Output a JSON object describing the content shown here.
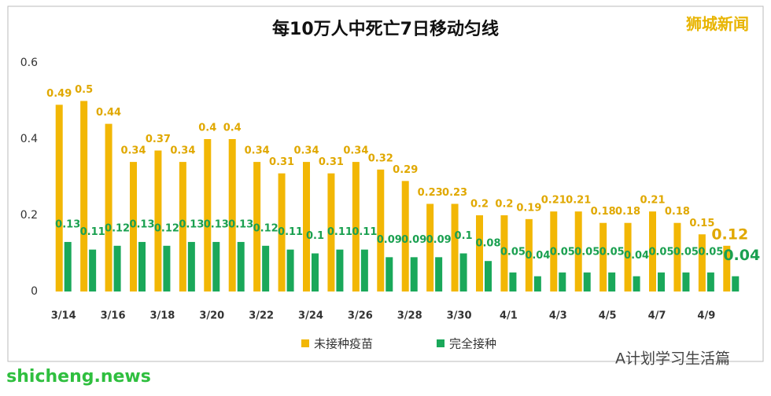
{
  "chart_data": {
    "type": "bar",
    "title": "每10万人中死亡7日移动匀线",
    "categories": [
      "3/14",
      null,
      "3/16",
      null,
      "3/18",
      null,
      "3/20",
      null,
      "3/22",
      null,
      "3/24",
      null,
      "3/26",
      null,
      "3/28",
      null,
      "3/30",
      null,
      "4/1",
      null,
      "4/3",
      null,
      "4/5",
      null,
      "4/7",
      null,
      "4/9",
      null
    ],
    "series": [
      {
        "name": "未接种疫苗",
        "color": "#f2b705",
        "values": [
          0.49,
          0.5,
          0.44,
          0.34,
          0.37,
          0.34,
          0.4,
          0.4,
          0.34,
          0.31,
          0.34,
          0.31,
          0.34,
          0.32,
          0.29,
          0.23,
          0.23,
          0.2,
          0.2,
          0.19,
          0.21,
          0.21,
          0.18,
          0.18,
          0.21,
          0.18,
          0.15,
          0.12
        ]
      },
      {
        "name": "完全接种",
        "color": "#1aa85a",
        "values": [
          0.13,
          0.11,
          0.12,
          0.13,
          0.12,
          0.13,
          0.13,
          0.13,
          0.12,
          0.11,
          0.1,
          0.11,
          0.11,
          0.09,
          0.09,
          0.09,
          0.1,
          0.08,
          0.05,
          0.04,
          0.05,
          0.05,
          0.05,
          0.04,
          0.05,
          0.05,
          0.05,
          0.04
        ]
      }
    ],
    "ylim": [
      0,
      0.6
    ],
    "yticks": [
      0,
      0.2,
      0.4,
      0.6
    ],
    "grid": false,
    "watermark": "狮城新闻",
    "source": "shicheng.news",
    "account": "A计划学习生活篇"
  }
}
